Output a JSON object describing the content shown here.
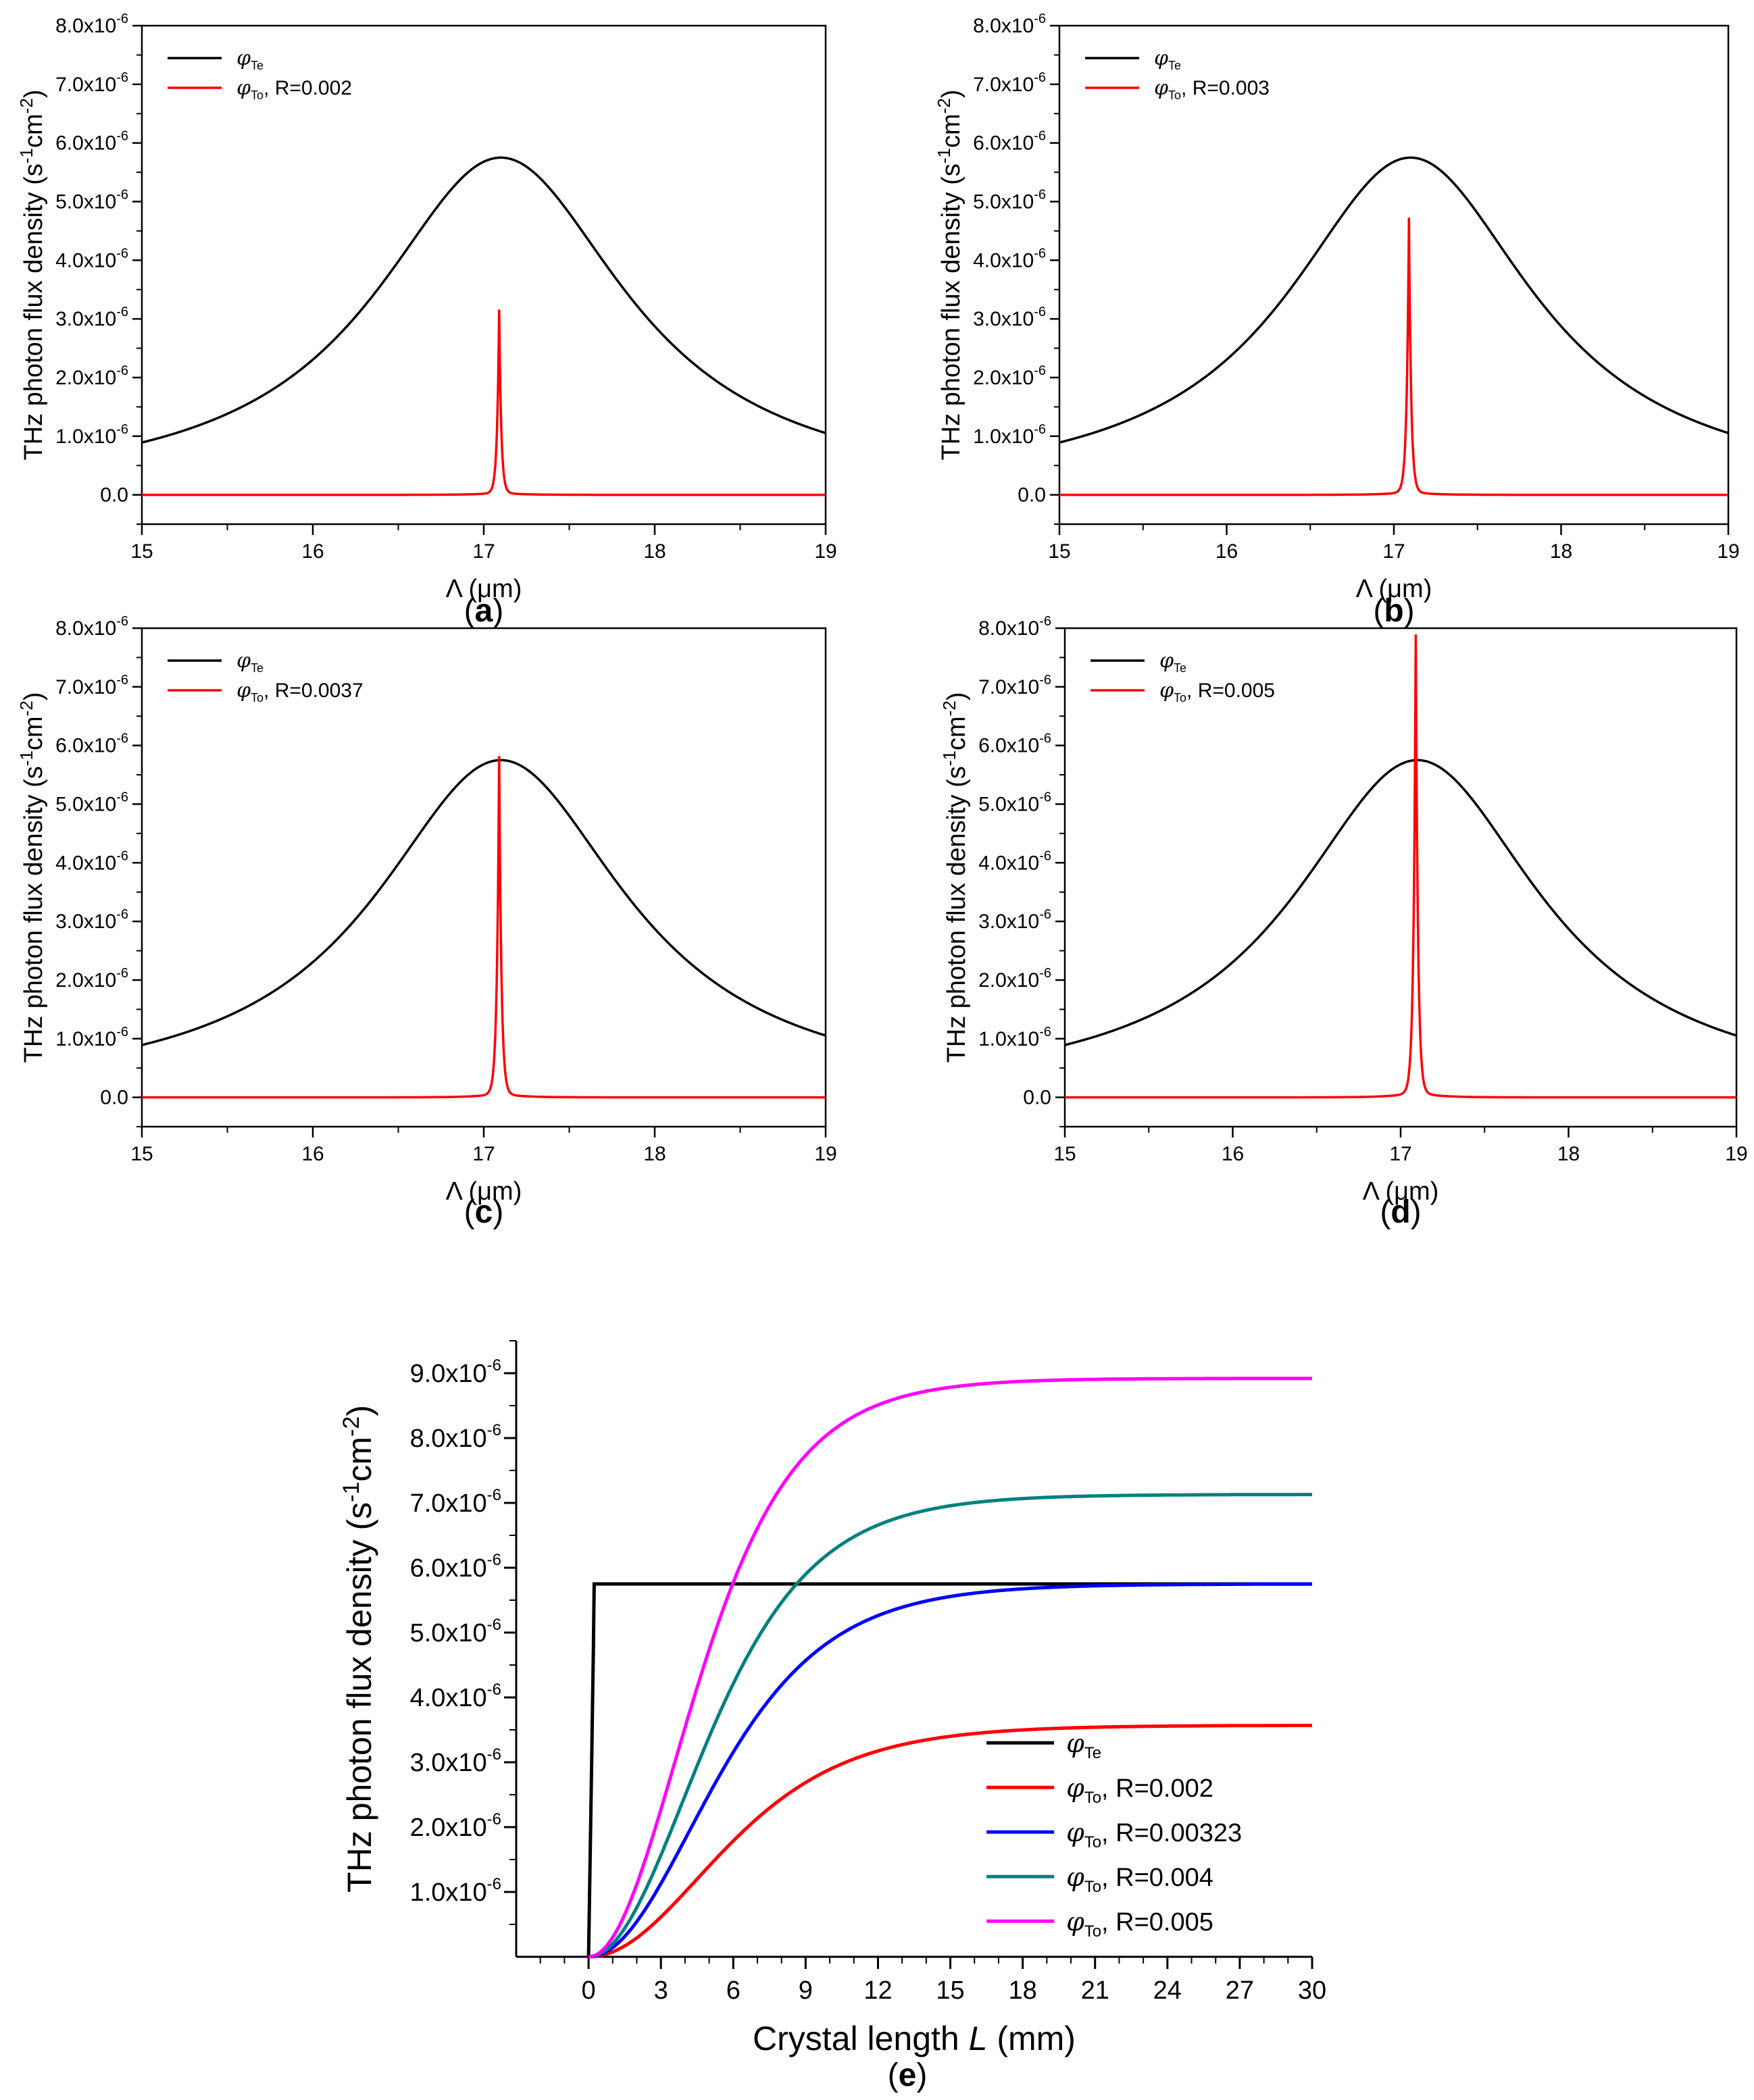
{
  "chart_data": [
    {
      "id": "a",
      "type": "line",
      "panel_label": "a",
      "xlabel": "Λ (μm)",
      "ylabel": "THz photon flux density (s-1cm-2)",
      "ylabel_parts": {
        "pre": "THz photon flux density (s",
        "sup1": "-1",
        "mid": "cm",
        "sup2": "-2",
        "post": ")"
      },
      "xlim": [
        15,
        19
      ],
      "ylim": [
        -0.5,
        8.0
      ],
      "y_scale_exp": "-6",
      "x_ticks": [
        "15",
        "16",
        "17",
        "18",
        "19"
      ],
      "y_ticks": [
        "0.0",
        "1.0x10",
        "2.0x10",
        "3.0x10",
        "4.0x10",
        "5.0x10",
        "6.0x10",
        "7.0x10",
        "8.0x10"
      ],
      "legend_position": "top-left",
      "series": [
        {
          "name": "φTe",
          "label": "",
          "color": "#000000",
          "peak_x": 17.1,
          "peak_y": 5.75,
          "width": 0.9,
          "shape": "lorentz"
        },
        {
          "name": "φTo",
          "label": ", R=0.002",
          "color": "#ff0000",
          "peak_x": 17.09,
          "peak_y": 3.12,
          "width": 0.012,
          "shape": "spike"
        }
      ]
    },
    {
      "id": "b",
      "type": "line",
      "panel_label": "b",
      "xlabel": "Λ (μm)",
      "ylabel": "THz photon flux density (s-1cm-2)",
      "ylabel_parts": {
        "pre": "THz photon flux density (s",
        "sup1": "-1",
        "mid": "cm",
        "sup2": "-2",
        "post": ")"
      },
      "xlim": [
        15,
        19
      ],
      "ylim": [
        -0.5,
        8.0
      ],
      "y_scale_exp": "-6",
      "x_ticks": [
        "15",
        "16",
        "17",
        "18",
        "19"
      ],
      "y_ticks": [
        "0.0",
        "1.0x10",
        "2.0x10",
        "3.0x10",
        "4.0x10",
        "5.0x10",
        "6.0x10",
        "7.0x10",
        "8.0x10"
      ],
      "legend_position": "top-left",
      "series": [
        {
          "name": "φTe",
          "label": "",
          "color": "#000000",
          "peak_x": 17.1,
          "peak_y": 5.75,
          "width": 0.9,
          "shape": "lorentz"
        },
        {
          "name": "φTo",
          "label": ", R=0.003",
          "color": "#ff0000",
          "peak_x": 17.09,
          "peak_y": 4.67,
          "width": 0.013,
          "shape": "spike"
        }
      ]
    },
    {
      "id": "c",
      "type": "line",
      "panel_label": "c",
      "xlabel": "Λ (μm)",
      "ylabel": "THz photon flux density (s-1cm-2)",
      "ylabel_parts": {
        "pre": "THz photon flux density (s",
        "sup1": "-1",
        "mid": "cm",
        "sup2": "-2",
        "post": ")"
      },
      "xlim": [
        15,
        19
      ],
      "ylim": [
        -0.5,
        8.0
      ],
      "y_scale_exp": "-6",
      "x_ticks": [
        "15",
        "16",
        "17",
        "18",
        "19"
      ],
      "y_ticks": [
        "0.0",
        "1.0x10",
        "2.0x10",
        "3.0x10",
        "4.0x10",
        "5.0x10",
        "6.0x10",
        "7.0x10",
        "8.0x10"
      ],
      "legend_position": "top-left",
      "series": [
        {
          "name": "φTe",
          "label": "",
          "color": "#000000",
          "peak_x": 17.1,
          "peak_y": 5.75,
          "width": 0.9,
          "shape": "lorentz"
        },
        {
          "name": "φTo",
          "label": ", R=0.0037",
          "color": "#ff0000",
          "peak_x": 17.09,
          "peak_y": 5.75,
          "width": 0.013,
          "shape": "spike"
        }
      ]
    },
    {
      "id": "d",
      "type": "line",
      "panel_label": "d",
      "xlabel": "Λ (μm)",
      "ylabel": "THz photon flux density (s-1cm-2)",
      "ylabel_parts": {
        "pre": "THz photon flux density (s",
        "sup1": "-1",
        "mid": "cm",
        "sup2": "-2",
        "post": ")"
      },
      "xlim": [
        15,
        19
      ],
      "ylim": [
        -0.5,
        8.0
      ],
      "y_scale_exp": "-6",
      "x_ticks": [
        "15",
        "16",
        "17",
        "18",
        "19"
      ],
      "y_ticks": [
        "0.0",
        "1.0x10",
        "2.0x10",
        "3.0x10",
        "4.0x10",
        "5.0x10",
        "6.0x10",
        "7.0x10",
        "8.0x10"
      ],
      "legend_position": "top-left",
      "series": [
        {
          "name": "φTe",
          "label": "",
          "color": "#000000",
          "peak_x": 17.1,
          "peak_y": 5.75,
          "width": 0.9,
          "shape": "lorentz"
        },
        {
          "name": "φTo",
          "label": ", R=0.005",
          "color": "#ff0000",
          "peak_x": 17.09,
          "peak_y": 7.8,
          "width": 0.013,
          "shape": "spike"
        }
      ]
    },
    {
      "id": "e",
      "type": "line",
      "panel_label": "e",
      "xlabel": "Crystal length L (mm)",
      "xlabel_parts": {
        "pre": "Crystal length ",
        "italic": "L",
        "post": " (mm)"
      },
      "ylabel": "THz photon flux density (s-1cm-2)",
      "ylabel_parts": {
        "pre": "THz photon flux density (s",
        "sup1": "-1",
        "mid": "cm",
        "sup2": "-2",
        "post": ")"
      },
      "xlim": [
        -3,
        30
      ],
      "ylim": [
        0,
        9.5
      ],
      "y_scale_exp": "-6",
      "x_ticks": [
        "0",
        "3",
        "6",
        "9",
        "12",
        "15",
        "18",
        "21",
        "24",
        "27",
        "30"
      ],
      "y_ticks": [
        "1.0x10",
        "2.0x10",
        "3.0x10",
        "4.0x10",
        "5.0x10",
        "6.0x10",
        "7.0x10",
        "8.0x10",
        "9.0x10"
      ],
      "legend_position": "bottom-right",
      "series": [
        {
          "name": "φTe",
          "label": "",
          "color": "#000000",
          "saturation": 5.75,
          "scale_length": 0.1
        },
        {
          "name": "φTo",
          "label": ", R=0.002",
          "color": "#ff0000",
          "saturation": 3.57,
          "scale_length": 6.8
        },
        {
          "name": "φTo",
          "label": ", R=0.00323",
          "color": "#0000ff",
          "saturation": 5.75,
          "scale_length": 6.3
        },
        {
          "name": "φTo",
          "label": ", R=0.004",
          "color": "#008080",
          "saturation": 7.13,
          "scale_length": 5.9
        },
        {
          "name": "φTo",
          "label": ", R=0.005",
          "color": "#ff00ff",
          "saturation": 8.92,
          "scale_length": 5.4
        }
      ]
    }
  ]
}
